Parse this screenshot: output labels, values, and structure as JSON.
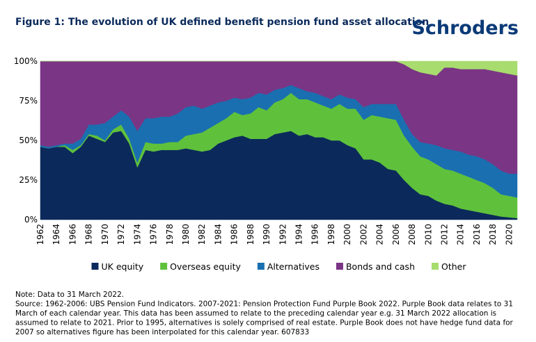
{
  "chart_data": {
    "type": "stacked_area",
    "title": "Figure 1: The evolution of UK defined benefit pension fund asset allocation",
    "brand": "Schroders",
    "x": [
      1962,
      1963,
      1964,
      1965,
      1966,
      1967,
      1968,
      1969,
      1970,
      1971,
      1972,
      1973,
      1974,
      1975,
      1976,
      1977,
      1978,
      1979,
      1980,
      1981,
      1982,
      1983,
      1984,
      1985,
      1986,
      1987,
      1988,
      1989,
      1990,
      1991,
      1992,
      1993,
      1994,
      1995,
      1996,
      1997,
      1998,
      1999,
      2000,
      2001,
      2002,
      2003,
      2004,
      2005,
      2006,
      2007,
      2008,
      2009,
      2010,
      2011,
      2012,
      2013,
      2014,
      2015,
      2016,
      2017,
      2018,
      2019,
      2020,
      2021
    ],
    "series": [
      {
        "name": "UK equity",
        "color": "#0b2a5b",
        "values": [
          46,
          45,
          46,
          46,
          42,
          46,
          53,
          51,
          49,
          55,
          56,
          48,
          33,
          44,
          43,
          44,
          44,
          44,
          45,
          44,
          43,
          44,
          48,
          50,
          52,
          53,
          51,
          51,
          51,
          54,
          55,
          56,
          53,
          54,
          52,
          52,
          50,
          50,
          47,
          45,
          38,
          38,
          36,
          32,
          31,
          25,
          20,
          16,
          15,
          12,
          10,
          9,
          7,
          6,
          5,
          4,
          3,
          2,
          1.5,
          1
        ]
      },
      {
        "name": "Overseas equity",
        "color": "#5fc13b",
        "values": [
          0,
          0,
          0,
          1,
          2,
          1,
          1,
          2,
          1,
          2,
          4,
          3,
          3,
          5,
          5,
          4,
          5,
          5,
          8,
          10,
          12,
          14,
          13,
          14,
          16,
          13,
          16,
          20,
          18,
          20,
          21,
          24,
          23,
          22,
          22,
          20,
          20,
          23,
          23,
          25,
          25,
          28,
          29,
          32,
          32,
          28,
          26,
          24,
          23,
          23,
          22,
          22,
          22,
          21,
          20,
          19,
          17,
          14,
          13.5,
          13
        ]
      },
      {
        "name": "Alternatives",
        "color": "#1a6fb0",
        "values": [
          1,
          1,
          1,
          1,
          4,
          4,
          6,
          7,
          11,
          8,
          9,
          14,
          20,
          15,
          16,
          17,
          16,
          18,
          18,
          18,
          15,
          14,
          13,
          11,
          9,
          10,
          10,
          9,
          10,
          8,
          7,
          5,
          7,
          5,
          6,
          6,
          6,
          6,
          7,
          6,
          8,
          7,
          8,
          9,
          10,
          10,
          8,
          9,
          10,
          12,
          13,
          13,
          14,
          14,
          15,
          15,
          15,
          15,
          14,
          15
        ]
      },
      {
        "name": "Bonds and cash",
        "color": "#7a3585",
        "values": [
          53,
          54,
          53,
          52,
          52,
          49,
          40,
          40,
          39,
          35,
          31,
          35,
          44,
          36,
          36,
          35,
          35,
          33,
          29,
          28,
          30,
          28,
          26,
          25,
          23,
          24,
          23,
          20,
          21,
          18,
          17,
          15,
          17,
          19,
          20,
          22,
          24,
          21,
          23,
          24,
          29,
          27,
          27,
          27,
          27,
          35,
          41,
          44,
          44,
          44,
          51,
          52,
          52,
          54,
          55,
          57,
          59,
          62,
          63,
          62
        ]
      },
      {
        "name": "Other",
        "color": "#a8dc6e",
        "values": [
          0,
          0,
          0,
          0,
          0,
          0,
          0,
          0,
          0,
          0,
          0,
          0,
          0,
          0,
          0,
          0,
          0,
          0,
          0,
          0,
          0,
          0,
          0,
          0,
          0,
          0,
          0,
          0,
          0,
          0,
          0,
          0,
          0,
          0,
          0,
          0,
          0,
          0,
          0,
          0,
          0,
          0,
          0,
          0,
          0,
          2,
          5,
          7,
          8,
          9,
          4,
          4,
          5,
          5,
          5,
          5,
          6,
          7,
          8,
          9
        ]
      }
    ],
    "xlim": [
      1962,
      2021
    ],
    "xticks": [
      1962,
      1964,
      1966,
      1968,
      1970,
      1972,
      1974,
      1976,
      1978,
      1980,
      1982,
      1984,
      1986,
      1988,
      1990,
      1992,
      1994,
      1996,
      1998,
      2000,
      2002,
      2004,
      2006,
      2008,
      2010,
      2012,
      2014,
      2016,
      2018,
      2020
    ],
    "ylim": [
      0,
      100
    ],
    "yticks": [
      {
        "value": 0,
        "label": "0%"
      },
      {
        "value": 25,
        "label": "25%"
      },
      {
        "value": 50,
        "label": "50%"
      },
      {
        "value": 75,
        "label": "75%"
      },
      {
        "value": 100,
        "label": "100%"
      }
    ],
    "grid": false,
    "notes": [
      "Note: Data to 31 March 2022.",
      "Source: 1962-2006: UBS Pension Fund Indicators. 2007-2021: Pension Protection Fund Purple Book 2022. Purple Book data relates to 31",
      "March of each calendar year. This data has been assumed to relate to the preceding calendar year e.g. 31 March 2022 allocation is",
      "assumed to relate to 2021.  Prior to 1995, alternatives is solely comprised of real estate. Purple Book does not have hedge fund data for",
      "2007 so alternatives figure has been interpolated for this calendar year. 607833"
    ]
  }
}
